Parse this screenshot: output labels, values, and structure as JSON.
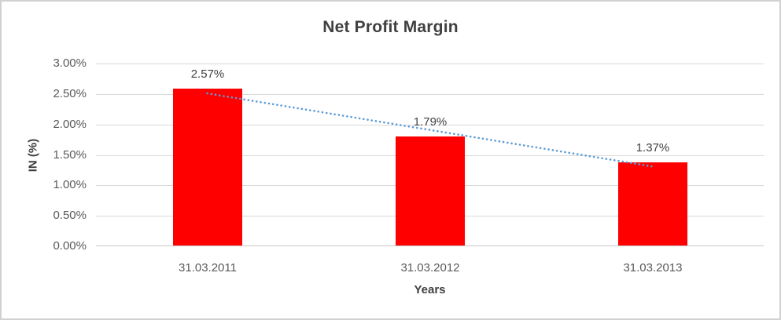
{
  "chart_data": {
    "type": "bar",
    "title": "Net Profit Margin",
    "categories": [
      "31.03.2011",
      "31.03.2012",
      "31.03.2013"
    ],
    "values": [
      2.57,
      1.79,
      1.37
    ],
    "data_labels": [
      "2.57%",
      "1.79%",
      "1.37%"
    ],
    "xlabel": "Years",
    "ylabel": "IN (%)",
    "ylim": [
      0,
      3
    ],
    "ytick_step": 0.5,
    "ytick_labels": [
      "0.00%",
      "0.50%",
      "1.00%",
      "1.50%",
      "2.00%",
      "2.50%",
      "3.00%"
    ],
    "legend": "none",
    "grid": true,
    "trendline": {
      "fit": "linear",
      "style": "dotted",
      "color": "#5B9BD5"
    },
    "colors": {
      "bar": "#FF0000",
      "gridline": "#D9D9D9",
      "axis_line": "#C6C6C6",
      "title_text": "#404040",
      "tick_text": "#595959",
      "data_label_text": "#404040",
      "axis_title_text": "#3F3F3F",
      "border": "#D1D1D1"
    }
  }
}
